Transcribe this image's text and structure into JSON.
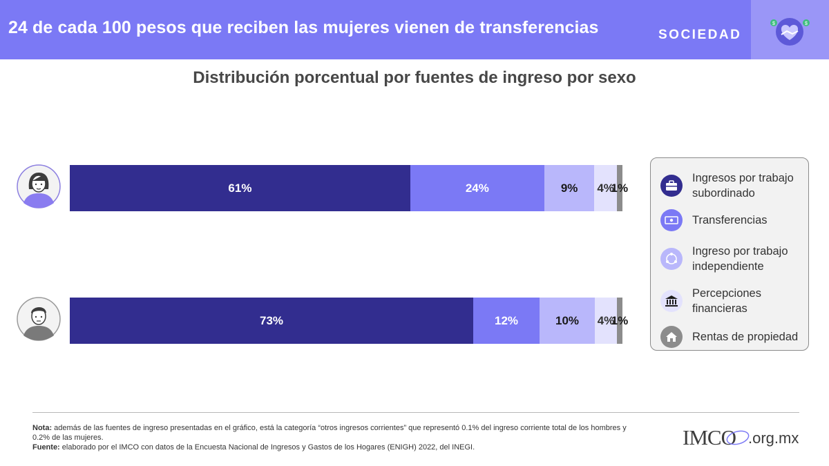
{
  "header": {
    "title": "24 de cada 100 pesos que reciben las mujeres vienen de transferencias",
    "section": "SOCIEDAD",
    "section_icon": "handshake-heart-icon",
    "bg_color": "#7b79f5"
  },
  "chart_data": {
    "type": "bar",
    "orientation": "horizontal",
    "stacked": true,
    "title": "Distribución porcentual por fuentes de ingreso por sexo",
    "categories": [
      "Mujeres",
      "Hombres"
    ],
    "category_icons": [
      "woman-avatar-icon",
      "man-avatar-icon"
    ],
    "series": [
      {
        "name": "Ingresos por trabajo subordinado",
        "values": [
          61,
          73
        ],
        "labels": [
          "61%",
          "73%"
        ],
        "color": "#322d8f",
        "text_color": "#ffffff",
        "icon": "briefcase-icon"
      },
      {
        "name": "Transferencias",
        "values": [
          24,
          12
        ],
        "labels": [
          "24%",
          "12%"
        ],
        "color": "#7b79f5",
        "text_color": "#ffffff",
        "icon": "money-icon"
      },
      {
        "name": "Ingreso por trabajo independiente",
        "values": [
          9,
          10
        ],
        "labels": [
          "9%",
          "10%"
        ],
        "color": "#b9b7fb",
        "text_color": "#1a1a1a",
        "icon": "network-icon"
      },
      {
        "name": "Percepciones financieras",
        "values": [
          4,
          4
        ],
        "labels": [
          "4%",
          "4%"
        ],
        "color": "#e3e2fd",
        "text_color": "#333333",
        "icon": "bank-icon"
      },
      {
        "name": "Rentas de propiedad",
        "values": [
          1,
          1
        ],
        "labels": [
          "1%",
          "1%"
        ],
        "color": "#8c8c8c",
        "text_color": "#1a1a1a",
        "icon": "house-icon"
      }
    ],
    "legend_position": "right",
    "grid": false
  },
  "legend": {
    "items": [
      {
        "label": "Ingresos por trabajo subordinado"
      },
      {
        "label": "Transferencias"
      },
      {
        "label": "Ingreso por trabajo independiente"
      },
      {
        "label": "Percepciones financieras"
      },
      {
        "label": "Rentas de propiedad"
      }
    ]
  },
  "footer": {
    "note_label": "Nota:",
    "note_text": " además de las fuentes de ingreso presentadas en el gráfico, está la categoría “otros ingresos corrientes” que representó 0.1% del ingreso corriente total de los hombres y 0.2% de las mujeres.",
    "source_label": "Fuente:",
    "source_text": " elaborado por el IMCO con datos de la Encuesta Nacional de Ingresos y Gastos de los Hogares (ENIGH) 2022, del INEGI.",
    "logo_text": "IMCO",
    "logo_suffix": ".org.mx"
  }
}
